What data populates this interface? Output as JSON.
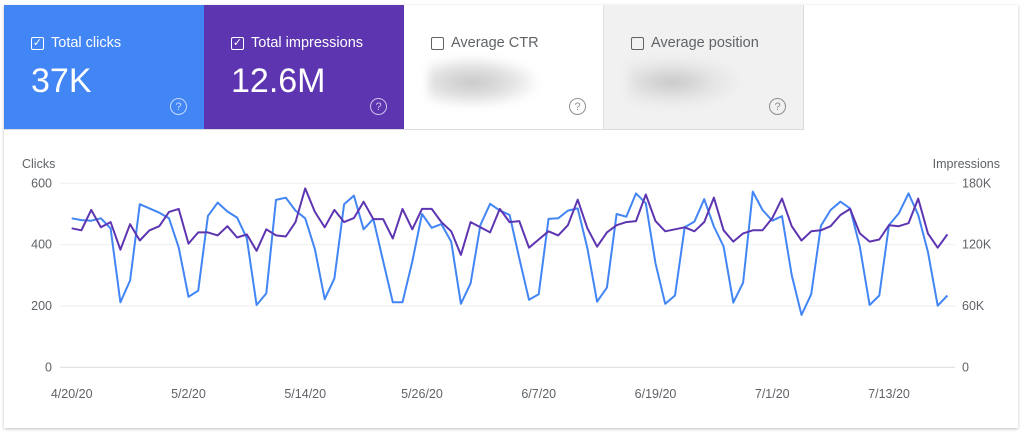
{
  "cards": [
    {
      "label": "Total clicks",
      "value": "37K",
      "checked": true,
      "color": "#4285f4"
    },
    {
      "label": "Total impressions",
      "value": "12.6M",
      "checked": true,
      "color": "#5e35b1"
    },
    {
      "label": "Average CTR",
      "value": null,
      "checked": false,
      "blurred": true
    },
    {
      "label": "Average position",
      "value": null,
      "checked": false,
      "blurred": true
    }
  ],
  "icons": {
    "checked": "✓",
    "help": "?"
  },
  "chart_data": {
    "type": "line",
    "ylabel_left": "Clicks",
    "ylabel_right": "Impressions",
    "yticks_left": [
      "0",
      "200",
      "400",
      "600"
    ],
    "yticks_right": [
      "0",
      "60K",
      "120K",
      "180K"
    ],
    "ylim_left": [
      0,
      600
    ],
    "ylim_right": [
      0,
      180000
    ],
    "xticks": [
      "4/20/20",
      "5/2/20",
      "5/14/20",
      "5/26/20",
      "6/7/20",
      "6/19/20",
      "7/1/20",
      "7/13/20"
    ],
    "grid": true,
    "x": [
      "4/20",
      "4/21",
      "4/22",
      "4/23",
      "4/24",
      "4/25",
      "4/26",
      "4/27",
      "4/28",
      "4/29",
      "4/30",
      "5/1",
      "5/2",
      "5/3",
      "5/4",
      "5/5",
      "5/6",
      "5/7",
      "5/8",
      "5/9",
      "5/10",
      "5/11",
      "5/12",
      "5/13",
      "5/14",
      "5/15",
      "5/16",
      "5/17",
      "5/18",
      "5/19",
      "5/20",
      "5/21",
      "5/22",
      "5/23",
      "5/24",
      "5/25",
      "5/26",
      "5/27",
      "5/28",
      "5/29",
      "5/30",
      "5/31",
      "6/1",
      "6/2",
      "6/3",
      "6/4",
      "6/5",
      "6/6",
      "6/7",
      "6/8",
      "6/9",
      "6/10",
      "6/11",
      "6/12",
      "6/13",
      "6/14",
      "6/15",
      "6/16",
      "6/17",
      "6/18",
      "6/19",
      "6/20",
      "6/21",
      "6/22",
      "6/23",
      "6/24",
      "6/25",
      "6/26",
      "6/27",
      "6/28",
      "6/29",
      "6/30",
      "7/1",
      "7/2",
      "7/3",
      "7/4",
      "7/5",
      "7/6",
      "7/7",
      "7/8",
      "7/9",
      "7/10",
      "7/11",
      "7/12",
      "7/13",
      "7/14",
      "7/15",
      "7/16",
      "7/17",
      "7/18",
      "7/19"
    ],
    "series": [
      {
        "name": "Clicks",
        "axis": "left",
        "color": "#4285f4",
        "values": [
          486,
          480,
          478,
          486,
          453,
          212,
          283,
          532,
          518,
          504,
          486,
          391,
          230,
          250,
          493,
          537,
          508,
          488,
          421,
          203,
          241,
          546,
          553,
          511,
          486,
          385,
          222,
          290,
          532,
          560,
          450,
          484,
          347,
          212,
          212,
          345,
          500,
          455,
          467,
          410,
          207,
          274,
          464,
          533,
          511,
          497,
          355,
          220,
          238,
          484,
          486,
          511,
          518,
          388,
          214,
          260,
          500,
          491,
          567,
          535,
          339,
          207,
          234,
          457,
          475,
          548,
          459,
          394,
          211,
          276,
          573,
          513,
          478,
          493,
          301,
          171,
          238,
          461,
          513,
          540,
          518,
          394,
          203,
          234,
          464,
          502,
          567,
          497,
          377,
          201,
          234
        ]
      },
      {
        "name": "Impressions",
        "axis": "right",
        "color": "#5e35b1",
        "values": [
          136000,
          134000,
          154000,
          137000,
          142000,
          115000,
          140000,
          124000,
          134000,
          138000,
          152000,
          155000,
          121000,
          132000,
          132000,
          129000,
          138000,
          127000,
          130000,
          114000,
          135000,
          129000,
          128000,
          142000,
          175000,
          152000,
          137000,
          154000,
          142000,
          146000,
          162000,
          145000,
          145000,
          126000,
          155000,
          135000,
          155000,
          155000,
          142000,
          133000,
          110000,
          142000,
          137000,
          132000,
          155000,
          142000,
          143000,
          117000,
          125000,
          133000,
          129000,
          139000,
          164000,
          136000,
          118000,
          132000,
          139000,
          142000,
          143000,
          169000,
          143000,
          133000,
          135000,
          137000,
          133000,
          142000,
          166000,
          134000,
          123000,
          131000,
          134000,
          134000,
          146000,
          165000,
          138000,
          124000,
          133000,
          134000,
          138000,
          149000,
          155000,
          131000,
          123000,
          125000,
          139000,
          138000,
          141000,
          165000,
          131000,
          117000,
          130000
        ]
      }
    ]
  }
}
